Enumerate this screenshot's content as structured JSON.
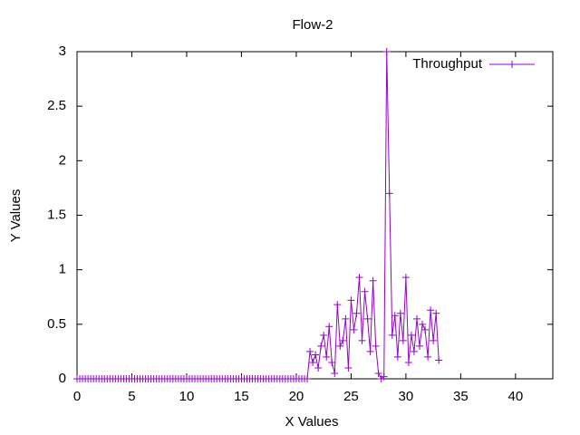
{
  "chart_data": {
    "type": "line",
    "title": "Flow-2",
    "x_label": "X Values",
    "y_label": "Y Values",
    "legend": "top-right",
    "grid": false,
    "xlim": [
      0,
      43.4
    ],
    "ylim": [
      0,
      3
    ],
    "xticks": [
      0,
      5,
      10,
      15,
      20,
      25,
      30,
      35,
      40
    ],
    "yticks": [
      0,
      0.5,
      1,
      1.5,
      2,
      2.5,
      3
    ],
    "x": [
      0,
      0.25,
      0.5,
      0.75,
      1,
      1.25,
      1.5,
      1.75,
      2,
      2.25,
      2.5,
      2.75,
      3,
      3.25,
      3.5,
      3.75,
      4,
      4.25,
      4.5,
      4.75,
      5,
      5.25,
      5.5,
      5.75,
      6,
      6.25,
      6.5,
      6.75,
      7,
      7.25,
      7.5,
      7.75,
      8,
      8.25,
      8.5,
      8.75,
      9,
      9.25,
      9.5,
      9.75,
      10,
      10.25,
      10.5,
      10.75,
      11,
      11.25,
      11.5,
      11.75,
      12,
      12.25,
      12.5,
      12.75,
      13,
      13.25,
      13.5,
      13.75,
      14,
      14.25,
      14.5,
      14.75,
      15,
      15.25,
      15.5,
      15.75,
      16,
      16.25,
      16.5,
      16.75,
      17,
      17.25,
      17.5,
      17.75,
      18,
      18.25,
      18.5,
      18.75,
      19,
      19.25,
      19.5,
      19.75,
      20,
      20.25,
      20.5,
      20.75,
      21,
      21.25,
      21.5,
      21.75,
      22,
      22.25,
      22.5,
      22.75,
      23,
      23.25,
      23.5,
      23.75,
      24,
      24.25,
      24.5,
      24.75,
      25,
      25.25,
      25.5,
      25.75,
      26,
      26.25,
      26.5,
      26.75,
      27,
      27.25,
      27.5,
      27.75,
      28,
      28.25,
      28.5,
      28.75,
      29,
      29.25,
      29.5,
      29.75,
      30,
      30.25,
      30.5,
      30.75,
      31,
      31.25,
      31.5,
      31.75,
      32,
      32.25,
      32.5,
      32.75,
      33
    ],
    "series": [
      {
        "name": "Throughput",
        "color": "#9400d3",
        "values": [
          0,
          0,
          0,
          0,
          0,
          0,
          0,
          0,
          0,
          0,
          0,
          0,
          0,
          0,
          0,
          0,
          0,
          0,
          0,
          0,
          0,
          0,
          0,
          0,
          0,
          0,
          0,
          0,
          0,
          0,
          0,
          0,
          0,
          0,
          0,
          0,
          0,
          0,
          0,
          0,
          0,
          0,
          0,
          0,
          0,
          0,
          0,
          0,
          0,
          0,
          0,
          0,
          0,
          0,
          0,
          0,
          0,
          0,
          0,
          0,
          0,
          0,
          0,
          0,
          0,
          0,
          0,
          0,
          0,
          0,
          0,
          0,
          0,
          0,
          0,
          0,
          0,
          0,
          0,
          0,
          0,
          0,
          0,
          0,
          0,
          0.25,
          0.15,
          0.22,
          0.1,
          0.3,
          0.4,
          0.2,
          0.48,
          0.15,
          0.05,
          0.68,
          0.3,
          0.35,
          0.55,
          0.1,
          0.72,
          0.45,
          0.6,
          0.93,
          0.35,
          0.8,
          0.55,
          0.25,
          0.9,
          0.3,
          0.05,
          0,
          0.02,
          3,
          1.7,
          0.4,
          0.58,
          0.2,
          0.6,
          0.35,
          0.93,
          0.15,
          0.4,
          0.25,
          0.55,
          0.3,
          0.5,
          0.45,
          0.2,
          0.63,
          0.35,
          0.6,
          0.17
        ]
      }
    ]
  }
}
